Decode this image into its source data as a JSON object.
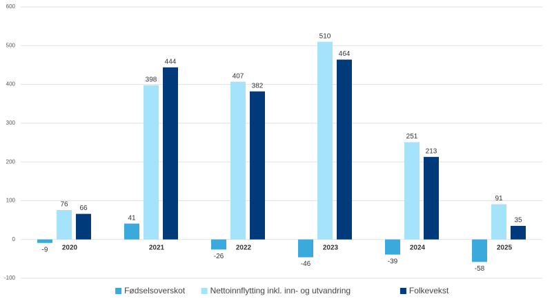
{
  "chart_data": {
    "type": "bar",
    "categories": [
      "2020",
      "2021",
      "2022",
      "2023",
      "2024",
      "2025"
    ],
    "series": [
      {
        "name": "Fødselsoverskot",
        "color": "#3aa9dc",
        "values": [
          -9,
          41,
          -26,
          -46,
          -39,
          -58
        ]
      },
      {
        "name": "Nettoinnflytting inkl. inn- og utvandring",
        "color": "#a5e3fb",
        "values": [
          76,
          398,
          407,
          510,
          251,
          91
        ]
      },
      {
        "name": "Folkevekst",
        "color": "#003a7a",
        "values": [
          66,
          444,
          382,
          464,
          213,
          35
        ]
      }
    ],
    "ylim": [
      -100,
      600
    ],
    "yticks": [
      -100,
      0,
      100,
      200,
      300,
      400,
      500,
      600
    ],
    "grid": true,
    "legend": "bottom"
  }
}
